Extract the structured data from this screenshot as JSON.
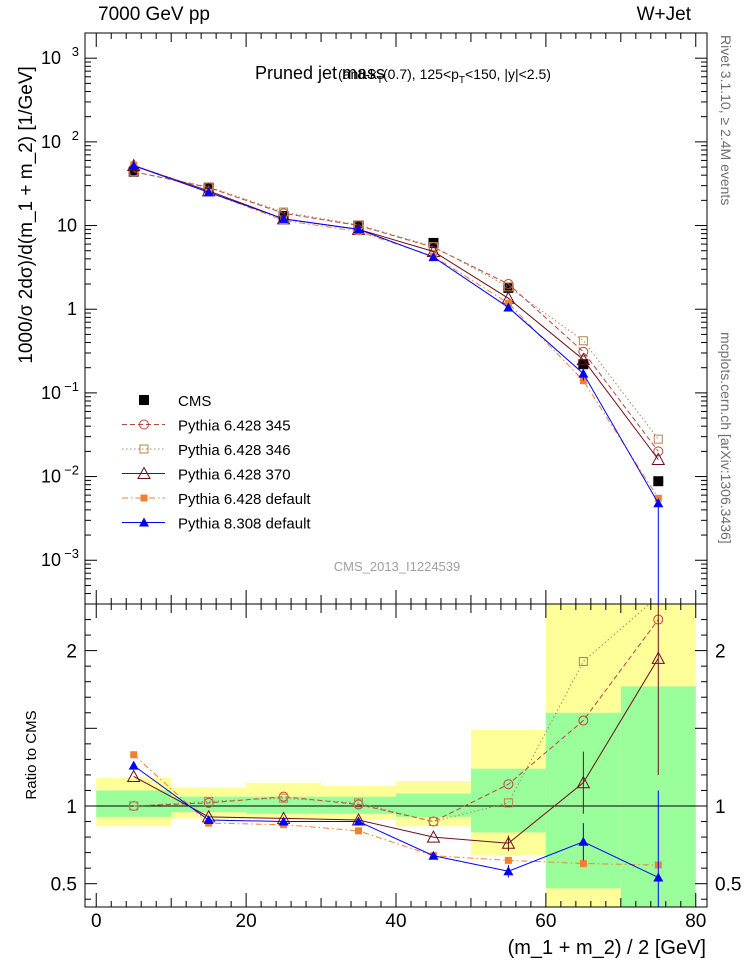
{
  "header": {
    "left": "7000 GeV pp",
    "right": "W+Jet"
  },
  "side": {
    "rivet": "Rivet 3.1.10, ≥ 2.4M events",
    "mcplots": "mcplots.cern.ch [arXiv:1306.3436]"
  },
  "watermark": "CMS_2013_I1224539",
  "colors": {
    "cms": "#000000",
    "p345": "#b4463c",
    "p346": "#b7844e",
    "p370": "#6b0f1a",
    "pdef": "#f47f31",
    "p8": "#0000ff",
    "band_green": "#9aff9a",
    "band_yellow": "#ffff9a"
  },
  "chart_data": [
    {
      "type": "line",
      "title": "Pruned jet mass",
      "subtitle": "(anti-kT(0.7), 125<pT<150, |y|<2.5)",
      "ylabel": "1000/σ 2dσ)/d(m_1 + m_2) [1/GeV]",
      "yscale": "log",
      "ylim": [
        0.0003,
        2000
      ],
      "xlim": [
        -1.5,
        81.5
      ],
      "y_tick_labels": [
        "10^-3",
        "10^-2",
        "10^-1",
        "1",
        "10",
        "10^2",
        "10^3"
      ],
      "x": [
        5,
        15,
        25,
        35,
        45,
        55,
        65,
        75
      ],
      "series": [
        {
          "name": "CMS",
          "marker": "square",
          "values": [
            44,
            28,
            13,
            10,
            6.2,
            1.8,
            0.22,
            0.0088
          ]
        },
        {
          "name": "Pythia 6.428 345",
          "marker": "circle-open",
          "dash": "dashed",
          "values": [
            44,
            28.5,
            14,
            10,
            5.5,
            2.0,
            0.31,
            0.02
          ]
        },
        {
          "name": "Pythia 6.428 346",
          "marker": "square-open",
          "dash": "dotted",
          "values": [
            44,
            29,
            14.5,
            10.2,
            5.6,
            1.85,
            0.42,
            0.028
          ]
        },
        {
          "name": "Pythia 6.428 370",
          "marker": "triangle-open",
          "dash": "solid",
          "values": [
            52,
            26,
            12,
            9,
            4.9,
            1.35,
            0.25,
            0.016
          ]
        },
        {
          "name": "Pythia 6.428 default",
          "marker": "square-small",
          "dash": "dashdot",
          "values": [
            53,
            25,
            11.5,
            8.5,
            4.3,
            1.18,
            0.14,
            0.0055
          ]
        },
        {
          "name": "Pythia 8.308 default",
          "marker": "triangle",
          "dash": "solid",
          "values": [
            52,
            25,
            12,
            9,
            4.2,
            1.05,
            0.17,
            0.0048
          ]
        }
      ]
    },
    {
      "type": "line",
      "ylabel": "Ratio to CMS",
      "xlabel": "(m_1 + m_2) / 2 [GeV]",
      "ylim": [
        0.35,
        2.3
      ],
      "xlim": [
        -1.5,
        81.5
      ],
      "y_ticks": [
        0.5,
        1,
        2
      ],
      "x_ticks": [
        0,
        20,
        40,
        60,
        80
      ],
      "x": [
        5,
        15,
        25,
        35,
        45,
        55,
        65,
        75
      ],
      "bins": [
        [
          0,
          10
        ],
        [
          10,
          20
        ],
        [
          20,
          30
        ],
        [
          30,
          40
        ],
        [
          40,
          50
        ],
        [
          50,
          60
        ],
        [
          60,
          70
        ],
        [
          70,
          80
        ]
      ],
      "band_green": [
        [
          0.93,
          1.1
        ],
        [
          0.96,
          1.06
        ],
        [
          0.95,
          1.06
        ],
        [
          0.95,
          1.06
        ],
        [
          0.93,
          1.08
        ],
        [
          0.83,
          1.24
        ],
        [
          0.47,
          1.6
        ],
        [
          0.35,
          1.77
        ]
      ],
      "band_yellow": [
        [
          0.87,
          1.18
        ],
        [
          0.92,
          1.12
        ],
        [
          0.92,
          1.15
        ],
        [
          0.91,
          1.13
        ],
        [
          0.87,
          1.16
        ],
        [
          0.68,
          1.49
        ],
        [
          0.35,
          2.6
        ],
        [
          0.35,
          2.6
        ]
      ],
      "series": [
        {
          "name": "Pythia 6.428 345",
          "values": [
            1.0,
            1.02,
            1.06,
            1.01,
            0.9,
            1.14,
            1.55,
            2.2
          ]
        },
        {
          "name": "Pythia 6.428 346",
          "values": [
            1.0,
            1.03,
            1.05,
            1.02,
            0.9,
            1.02,
            1.93,
            2.35
          ]
        },
        {
          "name": "Pythia 6.428 370",
          "values": [
            1.19,
            0.93,
            0.92,
            0.91,
            0.8,
            0.76,
            1.15,
            1.95
          ]
        },
        {
          "name": "Pythia 6.428 default",
          "values": [
            1.33,
            0.89,
            0.88,
            0.84,
            0.68,
            0.65,
            0.63,
            0.62
          ]
        },
        {
          "name": "Pythia 8.308 default",
          "values": [
            1.26,
            0.91,
            0.9,
            0.9,
            0.68,
            0.58,
            0.77,
            0.54
          ]
        }
      ]
    }
  ]
}
